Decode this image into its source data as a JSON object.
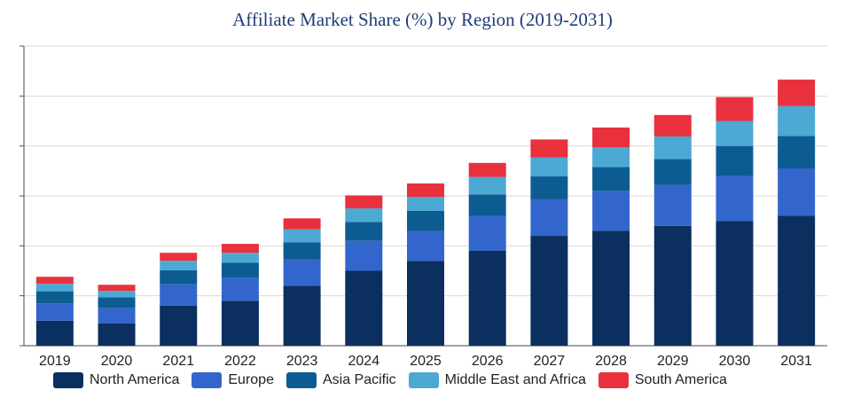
{
  "chart_data": {
    "type": "bar",
    "stacked": true,
    "title": "Affiliate Market Share (%) by Region (2019-2031)",
    "xlabel": "",
    "ylabel": "",
    "categories": [
      "2019",
      "2020",
      "2021",
      "2022",
      "2023",
      "2024",
      "2025",
      "2026",
      "2027",
      "2028",
      "2029",
      "2030",
      "2031"
    ],
    "ylim": [
      0,
      60
    ],
    "grid": true,
    "legend_position": "bottom",
    "series": [
      {
        "name": "North America",
        "color": "#0b2f5e",
        "values": [
          5.0,
          4.5,
          8.0,
          9.0,
          12.0,
          15.0,
          17.0,
          19.0,
          22.0,
          23.0,
          24.0,
          25.0,
          26.0
        ]
      },
      {
        "name": "Europe",
        "color": "#3366cc",
        "values": [
          3.5,
          3.0,
          4.3,
          4.6,
          5.3,
          6.0,
          6.0,
          7.0,
          7.3,
          8.0,
          8.2,
          9.0,
          9.5
        ]
      },
      {
        "name": "Asia Pacific",
        "color": "#0d5c91",
        "values": [
          2.4,
          2.2,
          2.8,
          3.0,
          3.4,
          3.8,
          4.0,
          4.3,
          4.6,
          4.8,
          5.2,
          6.0,
          6.5
        ]
      },
      {
        "name": "Middle East and Africa",
        "color": "#4ba9d3",
        "values": [
          1.5,
          1.3,
          1.9,
          2.0,
          2.6,
          2.7,
          2.8,
          3.5,
          3.8,
          3.9,
          4.5,
          5.0,
          6.0
        ]
      },
      {
        "name": "South America",
        "color": "#e8313d",
        "values": [
          1.4,
          1.2,
          1.6,
          1.8,
          2.2,
          2.6,
          2.7,
          2.8,
          3.6,
          4.0,
          4.3,
          4.8,
          5.3
        ]
      }
    ]
  }
}
